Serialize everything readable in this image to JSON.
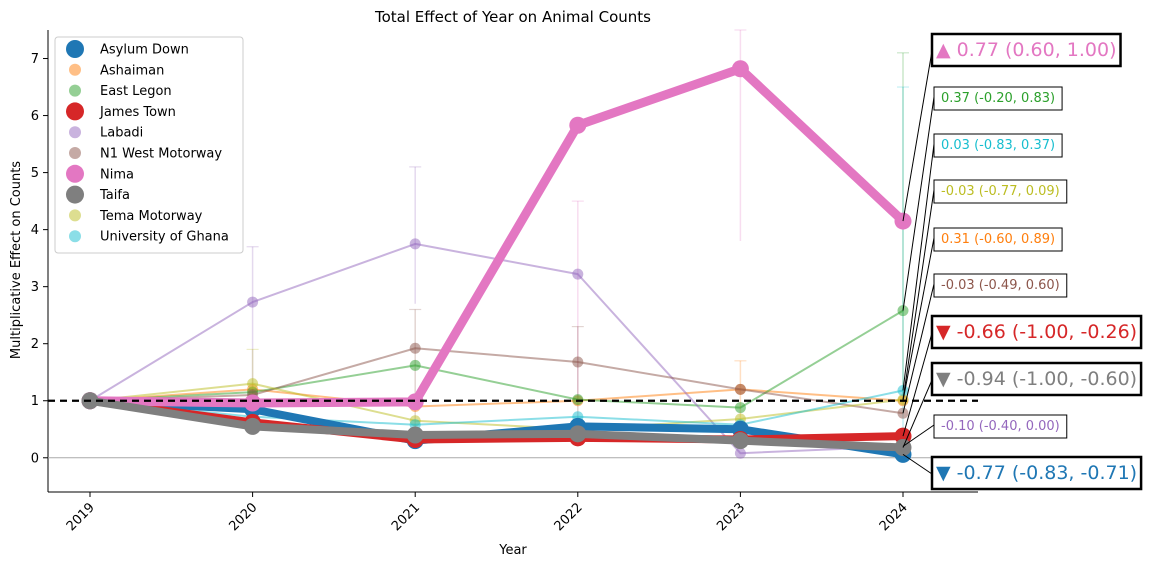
{
  "chart_data": {
    "type": "line",
    "title": "Total Effect of Year on Animal Counts",
    "xlabel": "Year",
    "ylabel": "Multiplicative Effect on Counts",
    "x": [
      2019,
      2020,
      2021,
      2022,
      2023,
      2024
    ],
    "x_tick_labels": [
      "2019",
      "2020",
      "2021",
      "2022",
      "2023",
      "2024"
    ],
    "ylim": [
      -0.6,
      7.5
    ],
    "y_ticks": [
      0,
      1,
      2,
      3,
      4,
      5,
      6,
      7
    ],
    "reference_line": 1,
    "legend_position": "upper-left",
    "series": [
      {
        "name": "Asylum Down",
        "color": "#1f77b4",
        "highlight": true,
        "values": [
          1.0,
          0.85,
          0.3,
          0.55,
          0.5,
          0.06
        ],
        "annotation": "▼ -0.77 (-0.83, -0.71)"
      },
      {
        "name": "Ashaiman",
        "color": "#ff7f0e",
        "highlight": false,
        "values": [
          1.0,
          1.2,
          0.9,
          1.0,
          1.2,
          1.0
        ],
        "annotation": "0.31 (-0.60, 0.89)"
      },
      {
        "name": "East Legon",
        "color": "#2ca02c",
        "highlight": false,
        "values": [
          1.0,
          1.15,
          1.62,
          1.02,
          0.88,
          2.58
        ],
        "annotation": "0.37 (-0.20, 0.83)"
      },
      {
        "name": "James Town",
        "color": "#d62728",
        "highlight": true,
        "values": [
          1.0,
          0.62,
          0.32,
          0.35,
          0.32,
          0.38
        ],
        "annotation": "▼ -0.66 (-1.00, -0.26)"
      },
      {
        "name": "Labadi",
        "color": "#9467bd",
        "highlight": false,
        "values": [
          1.0,
          2.73,
          3.75,
          3.22,
          0.08,
          0.2
        ],
        "annotation": "-0.10 (-0.40, 0.00)"
      },
      {
        "name": "N1 West Motorway",
        "color": "#8c564b",
        "highlight": false,
        "values": [
          1.0,
          1.1,
          1.92,
          1.68,
          1.2,
          0.78
        ],
        "annotation": "-0.03 (-0.49, 0.60)"
      },
      {
        "name": "Nima",
        "color": "#e377c2",
        "highlight": true,
        "values": [
          1.0,
          0.96,
          0.98,
          5.83,
          6.82,
          4.15
        ],
        "annotation": "▲ 0.77 (0.60, 1.00)"
      },
      {
        "name": "Taifa",
        "color": "#7f7f7f",
        "highlight": true,
        "values": [
          1.0,
          0.55,
          0.4,
          0.42,
          0.3,
          0.18
        ],
        "annotation": "▼ -0.94 (-1.00, -0.60)"
      },
      {
        "name": "Tema Motorway",
        "color": "#bcbd22",
        "highlight": false,
        "values": [
          1.0,
          1.3,
          0.65,
          0.5,
          0.68,
          1.02
        ],
        "annotation": "-0.03 (-0.77, 0.09)"
      },
      {
        "name": "University of Ghana",
        "color": "#17becf",
        "highlight": false,
        "values": [
          1.0,
          0.72,
          0.58,
          0.72,
          0.58,
          1.18
        ],
        "annotation": "0.03 (-0.83, 0.37)"
      }
    ]
  }
}
